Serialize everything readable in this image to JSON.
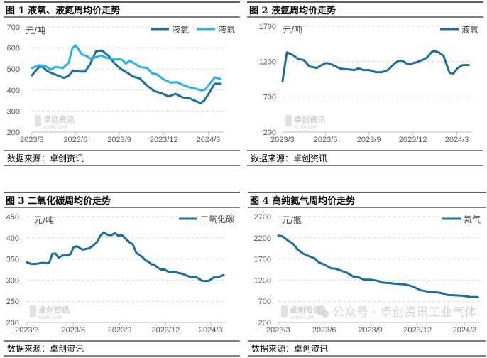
{
  "colors": {
    "dark": "#1a6f9c",
    "light": "#22b5ea",
    "grid": "#d9d9d9",
    "rule": "#000000"
  },
  "source_label": "数据来源：卓创资讯",
  "watermark": {
    "brand": "卓创资讯",
    "site": "SCI99.COM",
    "wechat": "公众号 · 卓创资讯工业气体"
  },
  "chart_data": [
    {
      "type": "line",
      "title": "图 1  液氧、液氮周均价走势",
      "unit": "元/吨",
      "ylim": [
        200,
        700
      ],
      "yticks": [
        700,
        600,
        500,
        400,
        300,
        200
      ],
      "xticks": [
        {
          "label": "2023/3",
          "week": 0
        },
        {
          "label": "2023/6",
          "week": 12.9
        },
        {
          "label": "2023/9",
          "week": 25.9
        },
        {
          "label": "2023/12",
          "week": 39.1
        },
        {
          "label": "2024/3",
          "week": 52.3
        }
      ],
      "xlim": [
        0,
        56
      ],
      "grid": true,
      "legend": "top-right",
      "series": [
        {
          "name": "液氧",
          "color": "#1a6f9c",
          "points": [
            [
              0,
              470
            ],
            [
              2.1,
              510
            ],
            [
              3.2,
              510
            ],
            [
              4.6,
              490
            ],
            [
              6.7,
              475
            ],
            [
              9.5,
              458
            ],
            [
              10.9,
              468
            ],
            [
              12,
              490
            ],
            [
              14.4,
              488
            ],
            [
              15.8,
              488
            ],
            [
              17.3,
              525
            ],
            [
              19,
              585
            ],
            [
              20.8,
              588
            ],
            [
              22.9,
              560
            ],
            [
              24.3,
              530
            ],
            [
              26.4,
              500
            ],
            [
              28.5,
              480
            ],
            [
              29.9,
              465
            ],
            [
              32,
              455
            ],
            [
              34.2,
              420
            ],
            [
              36.3,
              395
            ],
            [
              38.4,
              385
            ],
            [
              40.5,
              370
            ],
            [
              42.6,
              382
            ],
            [
              44.7,
              365
            ],
            [
              46.8,
              360
            ],
            [
              48.2,
              350
            ],
            [
              50,
              338
            ],
            [
              51.1,
              350
            ],
            [
              52.5,
              385
            ],
            [
              54.2,
              430
            ],
            [
              56,
              430
            ]
          ]
        },
        {
          "name": "液氮",
          "color": "#22b5ea",
          "points": [
            [
              0,
              505
            ],
            [
              2.1,
              518
            ],
            [
              3.9,
              515
            ],
            [
              5.6,
              498
            ],
            [
              7,
              510
            ],
            [
              9.2,
              505
            ],
            [
              10.9,
              530
            ],
            [
              12,
              600
            ],
            [
              13,
              612
            ],
            [
              14.8,
              570
            ],
            [
              16.2,
              562
            ],
            [
              17.3,
              550
            ],
            [
              19.4,
              558
            ],
            [
              20.4,
              565
            ],
            [
              21.8,
              555
            ],
            [
              23.6,
              548
            ],
            [
              25,
              545
            ],
            [
              26.1,
              548
            ],
            [
              27.1,
              540
            ],
            [
              27.8,
              525
            ],
            [
              28.9,
              540
            ],
            [
              30.6,
              525
            ],
            [
              32,
              510
            ],
            [
              34.2,
              505
            ],
            [
              35.6,
              480
            ],
            [
              37,
              475
            ],
            [
              39.1,
              450
            ],
            [
              41.2,
              435
            ],
            [
              43,
              438
            ],
            [
              44.7,
              425
            ],
            [
              46.8,
              412
            ],
            [
              48.2,
              408
            ],
            [
              50.4,
              398
            ],
            [
              51.4,
              403
            ],
            [
              53.2,
              440
            ],
            [
              54.2,
              460
            ],
            [
              56,
              452
            ]
          ]
        }
      ]
    },
    {
      "type": "line",
      "title": "图 2  液氩周均价走势",
      "unit": "元/吨",
      "ylim": [
        200,
        1700
      ],
      "yticks": [
        1700,
        1200,
        700,
        200
      ],
      "xticks": [
        {
          "label": "2023/3",
          "week": 0
        },
        {
          "label": "2023/6",
          "week": 12.9
        },
        {
          "label": "2023/9",
          "week": 25.9
        },
        {
          "label": "2023/12",
          "week": 39.1
        },
        {
          "label": "2024/3",
          "week": 52.3
        }
      ],
      "xlim": [
        0,
        56
      ],
      "grid": true,
      "legend": "top-right",
      "series": [
        {
          "name": "液氩",
          "color": "#1a6f9c",
          "points": [
            [
              0,
              920
            ],
            [
              0.4,
              1060
            ],
            [
              1.3,
              1330
            ],
            [
              3.2,
              1290
            ],
            [
              4.6,
              1240
            ],
            [
              6.4,
              1220
            ],
            [
              8.1,
              1130
            ],
            [
              10.3,
              1110
            ],
            [
              11.7,
              1150
            ],
            [
              13.1,
              1180
            ],
            [
              14.2,
              1170
            ],
            [
              16,
              1130
            ],
            [
              17.4,
              1100
            ],
            [
              19.5,
              1090
            ],
            [
              21.7,
              1080
            ],
            [
              22.4,
              1100
            ],
            [
              23.1,
              1100
            ],
            [
              24.2,
              1080
            ],
            [
              25.9,
              1080
            ],
            [
              28,
              1050
            ],
            [
              29.8,
              1050
            ],
            [
              31.6,
              1080
            ],
            [
              33.8,
              1180
            ],
            [
              34.8,
              1210
            ],
            [
              35.9,
              1210
            ],
            [
              37.3,
              1170
            ],
            [
              38.7,
              1170
            ],
            [
              40.2,
              1190
            ],
            [
              42.3,
              1230
            ],
            [
              43.4,
              1260
            ],
            [
              44.8,
              1340
            ],
            [
              45.5,
              1350
            ],
            [
              46.9,
              1330
            ],
            [
              48.3,
              1280
            ],
            [
              50.1,
              1040
            ],
            [
              51.2,
              1030
            ],
            [
              52.6,
              1110
            ],
            [
              54,
              1150
            ],
            [
              55.8,
              1150
            ]
          ]
        }
      ]
    },
    {
      "type": "line",
      "title": "图 3  二氧化碳周均价走势",
      "unit": "元/吨",
      "ylim": [
        200,
        450
      ],
      "yticks": [
        450,
        400,
        350,
        300,
        250,
        200
      ],
      "xticks": [
        {
          "label": "2023/3",
          "week": 0
        },
        {
          "label": "2023/6",
          "week": 13.2
        },
        {
          "label": "2023/9",
          "week": 26.4
        },
        {
          "label": "2023/12",
          "week": 39.5
        },
        {
          "label": "2024/3",
          "week": 52.3
        }
      ],
      "xlim": [
        0,
        56
      ],
      "grid": true,
      "legend": "top-right",
      "series": [
        {
          "name": "二氧化碳",
          "color": "#1a6f9c",
          "points": [
            [
              0,
              342
            ],
            [
              1.4,
              338
            ],
            [
              3,
              339
            ],
            [
              4.4,
              341
            ],
            [
              5.7,
              340
            ],
            [
              6.4,
              342
            ],
            [
              7.2,
              362
            ],
            [
              8.1,
              363
            ],
            [
              9,
              353
            ],
            [
              10.1,
              358
            ],
            [
              11.8,
              359
            ],
            [
              12.5,
              362
            ],
            [
              13.2,
              377
            ],
            [
              14.2,
              380
            ],
            [
              15.9,
              372
            ],
            [
              17.6,
              375
            ],
            [
              18.6,
              380
            ],
            [
              19.9,
              390
            ],
            [
              20.9,
              405
            ],
            [
              21.9,
              413
            ],
            [
              23,
              407
            ],
            [
              24,
              406
            ],
            [
              25,
              411
            ],
            [
              26,
              405
            ],
            [
              27.1,
              406
            ],
            [
              28.1,
              398
            ],
            [
              29.4,
              388
            ],
            [
              30.1,
              385
            ],
            [
              31.1,
              365
            ],
            [
              32.8,
              355
            ],
            [
              33.8,
              347
            ],
            [
              34.8,
              342
            ],
            [
              35.5,
              337
            ],
            [
              36.1,
              337
            ],
            [
              37.5,
              328
            ],
            [
              38.2,
              325
            ],
            [
              39.2,
              325
            ],
            [
              40.2,
              320
            ],
            [
              41.6,
              320
            ],
            [
              44.3,
              315
            ],
            [
              46.3,
              308
            ],
            [
              48,
              308
            ],
            [
              49,
              303
            ],
            [
              50,
              298
            ],
            [
              51.7,
              298
            ],
            [
              53.1,
              306
            ],
            [
              54.5,
              307
            ],
            [
              56,
              312
            ]
          ]
        }
      ]
    },
    {
      "type": "line",
      "title": "图 4  高纯氦气周均价走势",
      "unit": "元/瓶",
      "ylim": [
        200,
        2700
      ],
      "yticks": [
        2700,
        2200,
        1700,
        1200,
        700,
        200
      ],
      "xticks": [
        {
          "label": "2023/3",
          "week": 0
        },
        {
          "label": "2023/6",
          "week": 12.9
        },
        {
          "label": "2023/9",
          "week": 25.9
        },
        {
          "label": "2023/12",
          "week": 39.1
        },
        {
          "label": "2024/3",
          "week": 52.3
        }
      ],
      "xlim": [
        0,
        56
      ],
      "grid": true,
      "legend": "top-right",
      "series": [
        {
          "name": "氦气",
          "color": "#1a6f9c",
          "points": [
            [
              0,
              2250
            ],
            [
              1.1,
              2240
            ],
            [
              2.8,
              2130
            ],
            [
              4.1,
              2060
            ],
            [
              5.5,
              1920
            ],
            [
              7.1,
              1820
            ],
            [
              8.8,
              1760
            ],
            [
              10.1,
              1720
            ],
            [
              11.4,
              1620
            ],
            [
              13.1,
              1560
            ],
            [
              14.8,
              1480
            ],
            [
              16.1,
              1470
            ],
            [
              18.1,
              1410
            ],
            [
              19.4,
              1370
            ],
            [
              21.1,
              1280
            ],
            [
              22.1,
              1280
            ],
            [
              24.1,
              1210
            ],
            [
              26.1,
              1210
            ],
            [
              28.1,
              1180
            ],
            [
              29.4,
              1140
            ],
            [
              31.4,
              1130
            ],
            [
              33.4,
              1110
            ],
            [
              35.4,
              1100
            ],
            [
              37.4,
              1060
            ],
            [
              40,
              960
            ],
            [
              42.7,
              920
            ],
            [
              44.7,
              910
            ],
            [
              46,
              890
            ],
            [
              47.4,
              850
            ],
            [
              50,
              840
            ],
            [
              52,
              830
            ],
            [
              54,
              800
            ],
            [
              56,
              800
            ]
          ]
        }
      ]
    }
  ]
}
